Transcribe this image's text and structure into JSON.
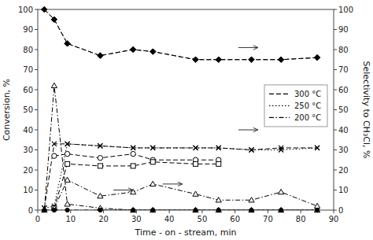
{
  "chart_data": {
    "type": "line",
    "x_label": "Time - on - stream, min",
    "y_label": "Conversion, %",
    "y2_label": "Selectivity to CH₃Cl, %",
    "xlim": [
      0,
      90
    ],
    "ylim": [
      0,
      100
    ],
    "y2lim": [
      0,
      100
    ],
    "xticks": [
      0,
      10,
      20,
      30,
      40,
      50,
      60,
      70,
      80,
      90
    ],
    "yticks": [
      0,
      10,
      20,
      30,
      40,
      50,
      60,
      70,
      80,
      90,
      100
    ],
    "y2ticks": [
      0,
      10,
      20,
      30,
      40,
      50,
      60,
      70,
      80,
      90,
      100
    ],
    "grid": false,
    "legend": "right",
    "series": [
      {
        "name": "300 °C",
        "color": "black",
        "line_style": "dashed",
        "marker": "diamond",
        "x": [
          2,
          5,
          9,
          19,
          29,
          35,
          48,
          55,
          65,
          74,
          85
        ],
        "values": [
          100,
          95,
          83,
          77,
          80,
          79,
          75,
          75,
          75,
          75,
          76
        ]
      },
      {
        "name": "250 °C",
        "color": "black",
        "line_style": "dotted",
        "marker": "x",
        "x": [
          2,
          5,
          9,
          19,
          29,
          35,
          48,
          55,
          65,
          74,
          85
        ],
        "values": [
          1,
          2,
          33,
          32,
          31,
          31,
          31,
          31,
          30,
          30,
          31
        ]
      },
      {
        "name": "200 °C",
        "color": "black",
        "line_style": "dashdot",
        "marker": "triangle-open",
        "x": [
          2,
          5,
          9,
          19,
          29,
          35,
          48,
          55,
          65,
          74,
          85
        ],
        "values": [
          0,
          62,
          3,
          1,
          0,
          0,
          0,
          0,
          0,
          0,
          0
        ]
      },
      {
        "color": "black",
        "line_style": "dashed",
        "marker": "diamond",
        "axis": "y2",
        "x": [
          2,
          5,
          9,
          19,
          29,
          35,
          48,
          55,
          65,
          74,
          85
        ],
        "values": [
          100,
          95,
          83,
          77,
          80,
          79,
          75,
          75,
          75,
          75,
          76
        ]
      },
      {
        "color": "black",
        "line_style": "dashed",
        "marker": "x",
        "axis": "y2",
        "x": [
          2,
          5,
          9,
          19,
          29,
          35,
          48,
          55,
          65,
          74,
          85
        ],
        "values": [
          1,
          33,
          33,
          32,
          31,
          31,
          31,
          31,
          30,
          31,
          31
        ]
      },
      {
        "color": "black",
        "line_style": "dashed",
        "marker": "circle-open",
        "axis": "y2",
        "x": [
          5,
          9,
          19,
          29,
          35,
          48,
          55
        ],
        "values": [
          27,
          28,
          26,
          28,
          25,
          25,
          25
        ]
      },
      {
        "color": "black",
        "line_style": "dashed",
        "marker": "square-open",
        "axis": "y2",
        "x": [
          5,
          9,
          19,
          29,
          35,
          48,
          55
        ],
        "values": [
          1,
          23,
          22,
          22,
          24,
          23,
          23
        ]
      },
      {
        "color": "black",
        "line_style": "dashdot",
        "marker": "triangle-open",
        "axis": "y2",
        "x": [
          5,
          9,
          19,
          29,
          35,
          48,
          55,
          65,
          74,
          85
        ],
        "values": [
          1,
          15,
          7,
          9,
          13,
          8,
          5,
          5,
          9,
          2
        ]
      },
      {
        "color": "black",
        "line_style": "dashdot",
        "marker": "circle",
        "axis": "y2",
        "x": [
          2,
          5,
          9,
          19,
          29,
          35,
          48,
          55,
          65,
          74,
          85
        ],
        "values": [
          0,
          0,
          0,
          0,
          0,
          0,
          0,
          0,
          0,
          0,
          0
        ]
      }
    ],
    "arrows": [
      {
        "x": [
          23,
          29
        ],
        "y": [
          10,
          10
        ]
      },
      {
        "x": [
          61,
          67
        ],
        "y": [
          40,
          40
        ]
      },
      {
        "x": [
          38,
          44
        ],
        "y": [
          13,
          13
        ]
      },
      {
        "x": [
          61,
          67
        ],
        "y": [
          81,
          81
        ]
      }
    ]
  }
}
